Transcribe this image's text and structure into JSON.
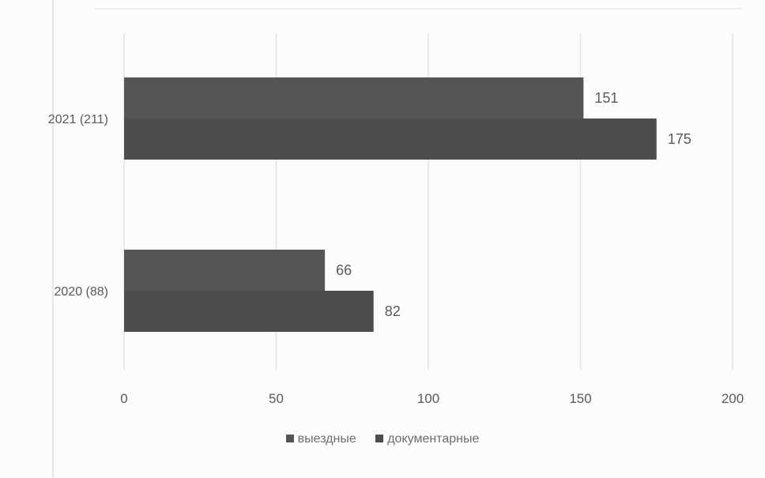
{
  "chart_data": {
    "type": "bar",
    "orientation": "horizontal",
    "categories": [
      "2021 (211)",
      "2020 (88)"
    ],
    "series": [
      {
        "name": "выездные",
        "values": [
          151,
          66
        ],
        "color": "#555555"
      },
      {
        "name": "документарные",
        "values": [
          175,
          82
        ],
        "color": "#4d4d4d"
      }
    ],
    "x_ticks": [
      "0",
      "50",
      "100",
      "150",
      "200"
    ],
    "xlim": [
      0,
      200
    ],
    "grid": true,
    "legend_position": "bottom",
    "data_labels": true,
    "title": "",
    "xlabel": "",
    "ylabel": ""
  }
}
